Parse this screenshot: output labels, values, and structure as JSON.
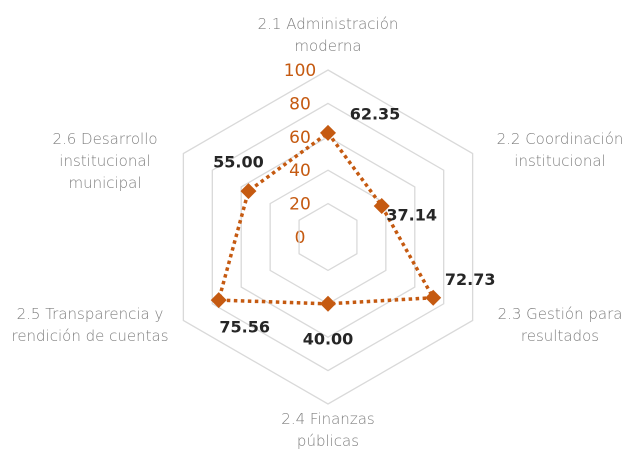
{
  "chart_data": {
    "type": "radar",
    "categories": [
      "2.1 Administración moderna",
      "2.2 Coordinación institucional",
      "2.3 Gestión para resultados",
      "2.4 Finanzas públicas",
      "2.5 Transparencia y rendición de cuentas",
      "2.6 Desarrollo institucional municipal"
    ],
    "series": [
      {
        "color": "#c55a11",
        "values": [
          62.35,
          37.14,
          72.73,
          40.0,
          75.56,
          55.0
        ],
        "value_labels": [
          "62.35",
          "37.14",
          "72.73",
          "40.00",
          "75.56",
          "55.00"
        ]
      }
    ],
    "ylim": [
      0,
      100
    ],
    "yticks": [
      0,
      20,
      40,
      60,
      80,
      100
    ],
    "grid": true
  }
}
